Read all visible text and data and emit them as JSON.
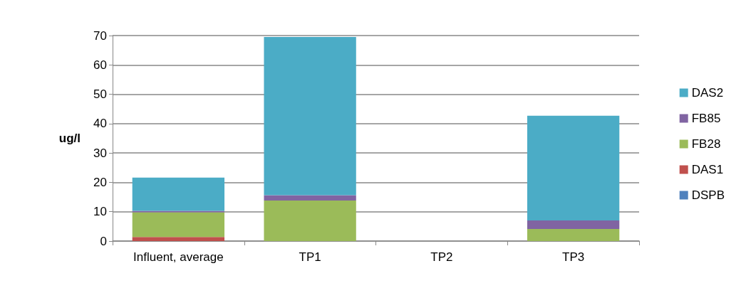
{
  "chart_data": {
    "type": "bar",
    "stacked": true,
    "ylabel": "ug/l",
    "categories": [
      "Influent, average",
      "TP1",
      "TP2",
      "TP3"
    ],
    "series": [
      {
        "name": "DSPB",
        "color": "#4f81bd",
        "values": [
          0,
          0,
          0,
          0
        ]
      },
      {
        "name": "DAS1",
        "color": "#c0504d",
        "values": [
          1.4,
          0,
          0,
          0
        ]
      },
      {
        "name": "FB28",
        "color": "#9bbb59",
        "values": [
          8.4,
          13.8,
          0,
          4.1
        ]
      },
      {
        "name": "FB85",
        "color": "#8064a2",
        "values": [
          0.5,
          1.8,
          0,
          2.9
        ]
      },
      {
        "name": "DAS2",
        "color": "#4bacc6",
        "values": [
          11.3,
          53.9,
          0,
          35.7
        ]
      }
    ],
    "ylim": [
      0,
      70
    ],
    "yticks": [
      0,
      10,
      20,
      30,
      40,
      50,
      60,
      70
    ],
    "grid": "y",
    "legend": "right"
  }
}
